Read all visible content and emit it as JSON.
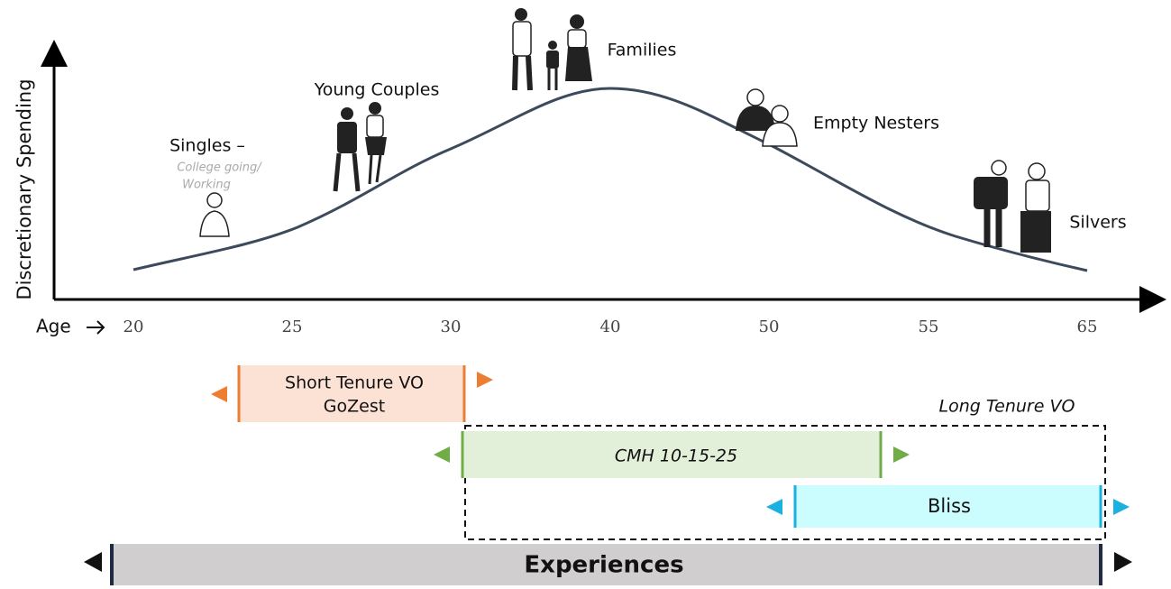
{
  "axis": {
    "y_label": "Discretionary Spending",
    "x_label": "Age",
    "ticks": [
      "20",
      "25",
      "30",
      "40",
      "50",
      "55",
      "65"
    ]
  },
  "stages": [
    {
      "label": "Singles –",
      "sublabel": [
        "College going/",
        "Working"
      ]
    },
    {
      "label": "Young Couples"
    },
    {
      "label": "Families"
    },
    {
      "label": "Empty Nesters"
    },
    {
      "label": "Silvers"
    }
  ],
  "programs": {
    "short_tenure": [
      "Short Tenure VO",
      "GoZest"
    ],
    "long_tenure": "Long Tenure  VO",
    "cmh": "CMH 10-15-25",
    "bliss": "Bliss",
    "experiences": "Experiences"
  }
}
